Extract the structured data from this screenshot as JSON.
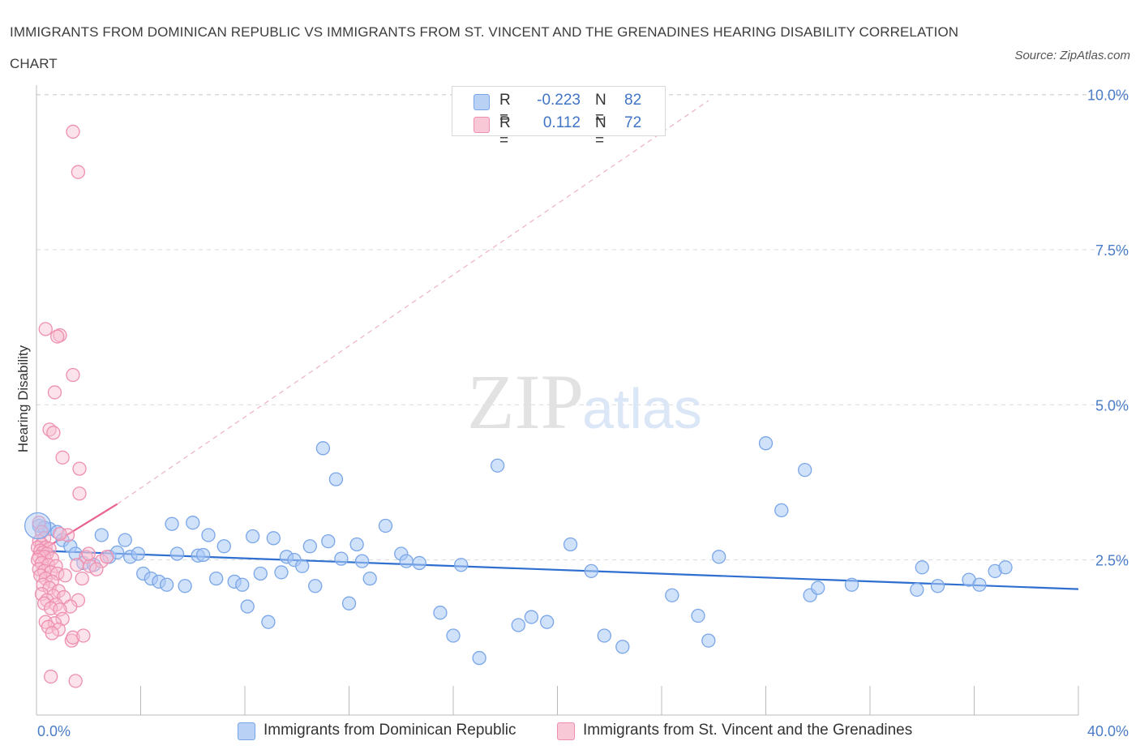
{
  "title": "IMMIGRANTS FROM DOMINICAN REPUBLIC VS IMMIGRANTS FROM ST. VINCENT AND THE GRENADINES HEARING DISABILITY CORRELATION CHART",
  "source": "Source: ZipAtlas.com",
  "watermark": {
    "zip": "ZIP",
    "atlas": "atlas"
  },
  "legend_top": [
    {
      "r_label": "R =",
      "r_value": "-0.223",
      "n_label": "N =",
      "n_value": "82",
      "color": "#b8d1f5",
      "border": "#7aa6e8"
    },
    {
      "r_label": "R =",
      "r_value": "0.112",
      "n_label": "N =",
      "n_value": "72",
      "color": "#f9c8d6",
      "border": "#ee8fb0"
    }
  ],
  "chart_data": {
    "type": "scatter",
    "title": "IMMIGRANTS FROM DOMINICAN REPUBLIC VS IMMIGRANTS FROM ST. VINCENT AND THE GRENADINES HEARING DISABILITY CORRELATION CHART",
    "xlabel": "",
    "ylabel": "Hearing Disability",
    "xlim": [
      0,
      40
    ],
    "ylim": [
      0,
      10.4
    ],
    "x_tick_labels": [
      "0.0%",
      "40.0%"
    ],
    "y_ticks": [
      2.5,
      5.0,
      7.5,
      10.0
    ],
    "y_tick_labels": [
      "2.5%",
      "5.0%",
      "7.5%",
      "10.0%"
    ],
    "grid": "horizontal dashed",
    "legend_placement": "bottom",
    "series": [
      {
        "name": "Immigrants from Dominican Republic",
        "color": "#7aa6e8",
        "trend": {
          "x": [
            0,
            40
          ],
          "y": [
            2.65,
            2.03
          ],
          "color": "#2e6fcf"
        },
        "points": [
          [
            0.1,
            3.05
          ],
          [
            0.5,
            3.0
          ],
          [
            0.8,
            2.95
          ],
          [
            0.3,
            3.02
          ],
          [
            1.0,
            2.82
          ],
          [
            1.3,
            2.72
          ],
          [
            1.5,
            2.6
          ],
          [
            1.8,
            2.45
          ],
          [
            2.2,
            2.42
          ],
          [
            2.5,
            2.9
          ],
          [
            2.8,
            2.55
          ],
          [
            3.1,
            2.62
          ],
          [
            3.4,
            2.82
          ],
          [
            3.6,
            2.55
          ],
          [
            3.9,
            2.6
          ],
          [
            4.1,
            2.28
          ],
          [
            4.4,
            2.2
          ],
          [
            4.7,
            2.15
          ],
          [
            5.0,
            2.1
          ],
          [
            5.2,
            3.08
          ],
          [
            5.4,
            2.6
          ],
          [
            5.7,
            2.08
          ],
          [
            6.0,
            3.1
          ],
          [
            6.2,
            2.57
          ],
          [
            6.4,
            2.58
          ],
          [
            6.6,
            2.9
          ],
          [
            6.9,
            2.2
          ],
          [
            7.2,
            2.72
          ],
          [
            7.6,
            2.15
          ],
          [
            7.9,
            2.1
          ],
          [
            8.1,
            1.75
          ],
          [
            8.3,
            2.88
          ],
          [
            8.6,
            2.28
          ],
          [
            8.9,
            1.5
          ],
          [
            9.1,
            2.85
          ],
          [
            9.4,
            2.3
          ],
          [
            9.6,
            2.55
          ],
          [
            9.9,
            2.5
          ],
          [
            10.2,
            2.4
          ],
          [
            10.5,
            2.72
          ],
          [
            10.7,
            2.08
          ],
          [
            11.0,
            4.3
          ],
          [
            11.2,
            2.8
          ],
          [
            11.5,
            3.8
          ],
          [
            11.7,
            2.52
          ],
          [
            12.0,
            1.8
          ],
          [
            12.3,
            2.75
          ],
          [
            12.5,
            2.48
          ],
          [
            12.8,
            2.2
          ],
          [
            13.4,
            3.05
          ],
          [
            14.0,
            2.6
          ],
          [
            14.2,
            2.48
          ],
          [
            14.7,
            2.45
          ],
          [
            15.5,
            1.65
          ],
          [
            16.0,
            1.28
          ],
          [
            16.3,
            2.42
          ],
          [
            17.0,
            0.92
          ],
          [
            17.7,
            4.02
          ],
          [
            18.5,
            1.45
          ],
          [
            19.0,
            1.58
          ],
          [
            19.6,
            1.5
          ],
          [
            20.5,
            2.75
          ],
          [
            21.3,
            2.32
          ],
          [
            21.8,
            1.28
          ],
          [
            22.5,
            1.1
          ],
          [
            24.4,
            1.93
          ],
          [
            25.4,
            1.6
          ],
          [
            25.8,
            1.2
          ],
          [
            26.2,
            2.55
          ],
          [
            28.0,
            4.38
          ],
          [
            28.6,
            3.3
          ],
          [
            29.5,
            3.95
          ],
          [
            29.7,
            1.93
          ],
          [
            30.0,
            2.05
          ],
          [
            31.3,
            2.1
          ],
          [
            33.8,
            2.02
          ],
          [
            34.0,
            2.38
          ],
          [
            34.6,
            2.08
          ],
          [
            35.8,
            2.18
          ],
          [
            36.2,
            2.1
          ],
          [
            36.8,
            2.32
          ],
          [
            37.2,
            2.38
          ]
        ]
      },
      {
        "name": "Immigrants from St. Vincent and the Grenadines",
        "color": "#ee8fb0",
        "trend": {
          "x": [
            0,
            3.1
          ],
          "y": [
            2.6,
            3.4
          ],
          "color": "#e8628f"
        },
        "trend_extension": {
          "x": [
            3.1,
            25.8
          ],
          "y": [
            3.4,
            9.9
          ]
        },
        "points": [
          [
            1.4,
            9.4
          ],
          [
            1.6,
            8.75
          ],
          [
            0.35,
            6.22
          ],
          [
            0.9,
            6.12
          ],
          [
            0.8,
            6.1
          ],
          [
            1.4,
            5.48
          ],
          [
            0.7,
            5.2
          ],
          [
            0.5,
            4.6
          ],
          [
            0.65,
            4.55
          ],
          [
            1.0,
            4.15
          ],
          [
            1.65,
            3.97
          ],
          [
            1.65,
            3.57
          ],
          [
            0.1,
            3.1
          ],
          [
            0.2,
            2.95
          ],
          [
            0.3,
            2.85
          ],
          [
            0.1,
            2.8
          ],
          [
            0.2,
            2.75
          ],
          [
            0.05,
            2.7
          ],
          [
            0.35,
            2.7
          ],
          [
            0.5,
            2.68
          ],
          [
            0.15,
            2.65
          ],
          [
            0.25,
            2.62
          ],
          [
            0.4,
            2.6
          ],
          [
            0.1,
            2.55
          ],
          [
            0.3,
            2.55
          ],
          [
            0.6,
            2.52
          ],
          [
            0.05,
            2.5
          ],
          [
            0.2,
            2.45
          ],
          [
            0.45,
            2.42
          ],
          [
            0.75,
            2.4
          ],
          [
            0.1,
            2.35
          ],
          [
            0.3,
            2.32
          ],
          [
            0.55,
            2.3
          ],
          [
            0.8,
            2.28
          ],
          [
            0.15,
            2.25
          ],
          [
            1.1,
            2.25
          ],
          [
            0.35,
            2.2
          ],
          [
            0.6,
            2.15
          ],
          [
            0.25,
            2.1
          ],
          [
            0.5,
            2.05
          ],
          [
            0.85,
            2.0
          ],
          [
            0.2,
            1.95
          ],
          [
            0.65,
            1.92
          ],
          [
            1.05,
            1.9
          ],
          [
            0.4,
            1.85
          ],
          [
            1.6,
            1.85
          ],
          [
            0.3,
            1.8
          ],
          [
            0.75,
            1.78
          ],
          [
            1.3,
            1.75
          ],
          [
            0.55,
            1.72
          ],
          [
            0.9,
            1.7
          ],
          [
            1.0,
            1.55
          ],
          [
            0.35,
            1.5
          ],
          [
            0.7,
            1.48
          ],
          [
            0.45,
            1.42
          ],
          [
            0.85,
            1.38
          ],
          [
            0.6,
            1.32
          ],
          [
            1.35,
            1.2
          ],
          [
            1.4,
            1.25
          ],
          [
            1.8,
            1.28
          ],
          [
            0.55,
            0.62
          ],
          [
            1.5,
            0.55
          ],
          [
            1.9,
            2.55
          ],
          [
            2.05,
            2.4
          ],
          [
            2.5,
            2.48
          ],
          [
            2.7,
            2.55
          ],
          [
            1.2,
            2.9
          ],
          [
            0.9,
            2.92
          ],
          [
            2.3,
            2.35
          ],
          [
            1.75,
            2.2
          ],
          [
            2.0,
            2.6
          ],
          [
            1.55,
            2.42
          ]
        ]
      }
    ]
  }
}
